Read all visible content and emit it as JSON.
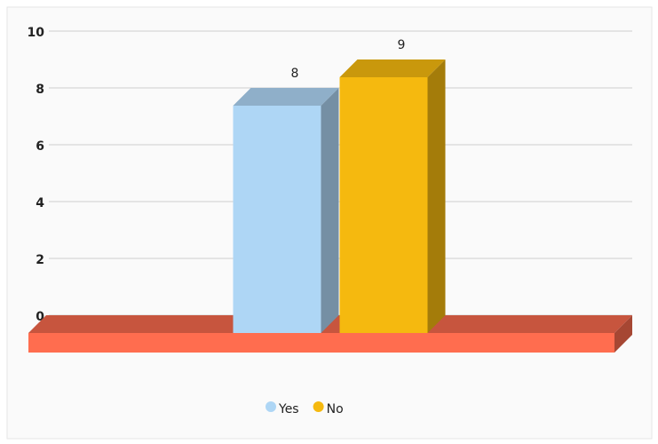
{
  "chart_data": {
    "type": "bar3d",
    "categories": [
      null
    ],
    "series": [
      {
        "name": "Yes",
        "color": "#aed6f5",
        "values": [
          8
        ],
        "value_labels": [
          "8"
        ]
      },
      {
        "name": "No",
        "color": "#f5b90f",
        "values": [
          9
        ],
        "value_labels": [
          "9"
        ]
      }
    ],
    "floor_color": "#ff6d4f",
    "ylim": [
      0,
      10
    ],
    "yticks": [
      0,
      2,
      4,
      6,
      8,
      10
    ],
    "grid": true,
    "legend": "bottom"
  }
}
